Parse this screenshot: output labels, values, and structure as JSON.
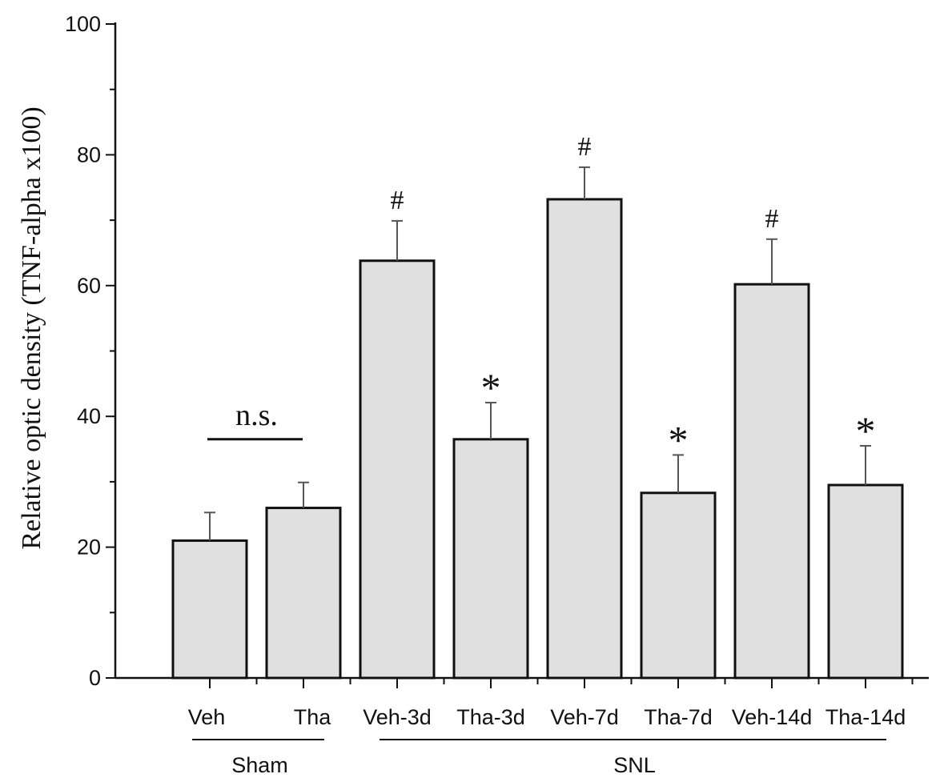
{
  "chart_data": {
    "type": "bar",
    "title": "",
    "xlabel": "",
    "ylabel": "Relative optic density (TNF-alpha x100)",
    "ylim": [
      0,
      100
    ],
    "yticks": [
      0,
      20,
      40,
      60,
      80,
      100
    ],
    "grid": false,
    "legend": "none",
    "categories": [
      "Veh",
      "Tha",
      "Veh-3d",
      "Tha-3d",
      "Veh-7d",
      "Tha-7d",
      "Veh-14d",
      "Tha-14d"
    ],
    "values": [
      21,
      26,
      63.8,
      36.5,
      73.2,
      28.3,
      60.2,
      29.5
    ],
    "errors": [
      4.3,
      3.9,
      6.1,
      5.6,
      4.9,
      5.8,
      6.9,
      6.0
    ],
    "annotations": [
      "",
      "",
      "#",
      "*",
      "#",
      "*",
      "#",
      "*"
    ],
    "groups": [
      {
        "label": "Sham",
        "start": 0,
        "end": 1
      },
      {
        "label": "SNL",
        "start": 2,
        "end": 7
      }
    ],
    "ns_bracket": {
      "label": "n.s.",
      "start": 0,
      "end": 1,
      "y": 36.5
    },
    "colors": {
      "bar_fill": "#e0e0e0",
      "bar_stroke": "#111111",
      "axis": "#111111"
    }
  }
}
